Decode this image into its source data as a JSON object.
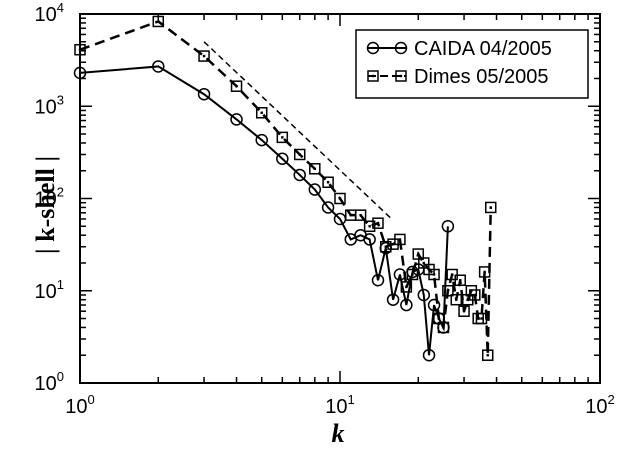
{
  "chart_data": {
    "type": "line",
    "title": "",
    "xlabel": "k",
    "ylabel": "| k-shell |",
    "xscale": "log",
    "yscale": "log",
    "xlim": [
      1,
      100
    ],
    "ylim": [
      1,
      10000
    ],
    "x_ticks": [
      {
        "base": "10",
        "exp": "0"
      },
      {
        "base": "10",
        "exp": "1"
      },
      {
        "base": "10",
        "exp": "2"
      }
    ],
    "y_ticks": [
      {
        "base": "10",
        "exp": "0"
      },
      {
        "base": "10",
        "exp": "1"
      },
      {
        "base": "10",
        "exp": "2"
      },
      {
        "base": "10",
        "exp": "3"
      },
      {
        "base": "10",
        "exp": "4"
      }
    ],
    "grid": false,
    "legend_position": "top-right",
    "series": [
      {
        "name": "CAIDA 04/2005",
        "marker": "circle",
        "line_style": "solid",
        "x": [
          1,
          2,
          3,
          4,
          5,
          6,
          7,
          8,
          9,
          10,
          11,
          12,
          13,
          14,
          15,
          16,
          17,
          18,
          19,
          20,
          21,
          22,
          23,
          24,
          25,
          26
        ],
        "y": [
          2300,
          2700,
          1350,
          720,
          430,
          270,
          180,
          125,
          80,
          60,
          36,
          40,
          36,
          13,
          29,
          8,
          15,
          7,
          16,
          17,
          9,
          2,
          7,
          5,
          4,
          50
        ]
      },
      {
        "name": "Dimes 05/2005",
        "marker": "square-dot",
        "line_style": "dashed",
        "x": [
          1,
          2,
          3,
          4,
          5,
          6,
          7,
          8,
          9,
          10,
          11,
          12,
          13,
          14,
          15,
          16,
          17,
          18,
          19,
          20,
          21,
          22,
          23,
          24,
          25,
          26,
          27,
          28,
          29,
          30,
          31,
          32,
          33,
          34,
          35,
          36,
          37,
          38
        ],
        "y": [
          4100,
          8300,
          3500,
          1650,
          850,
          460,
          300,
          210,
          150,
          100,
          66,
          66,
          50,
          54,
          30,
          32,
          36,
          11,
          15,
          25,
          20,
          17,
          15,
          5,
          4,
          10,
          15,
          8,
          13,
          6,
          8,
          10,
          9,
          5,
          5,
          16,
          2,
          80
        ]
      }
    ],
    "reference_line": {
      "style": "dashed",
      "x": [
        3,
        16
      ],
      "y": [
        5000,
        58
      ]
    }
  }
}
